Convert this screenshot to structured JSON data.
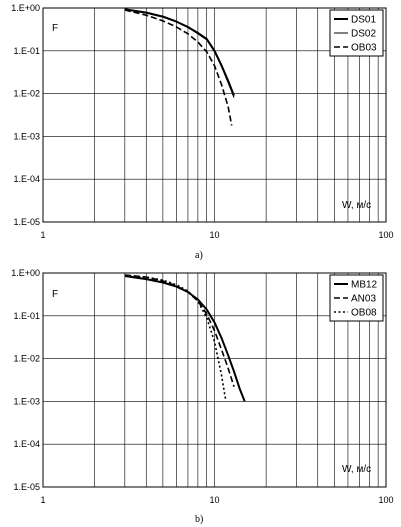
{
  "chart_data": [
    {
      "type": "line",
      "caption": "a)",
      "ylabel": "F",
      "xlabel": "W, м/с",
      "x_scale": "log",
      "y_scale": "log",
      "xlim": [
        1,
        100
      ],
      "ylim": [
        1e-05,
        1
      ],
      "x_ticks": [
        1,
        10,
        100
      ],
      "x_tick_labels": [
        "1",
        "10",
        "100"
      ],
      "y_ticks": [
        1,
        0.1,
        0.01,
        0.001,
        0.0001,
        1e-05
      ],
      "y_tick_labels": [
        "1.E+00",
        "1.E-01",
        "1.E-02",
        "1.E-03",
        "1.E-04",
        "1.E-05"
      ],
      "grid": true,
      "legend_position": "top-right",
      "series": [
        {
          "name": "DS01",
          "style": "thick-solid",
          "x": [
            3.0,
            4.0,
            5.0,
            6.0,
            7.0,
            8.0,
            9.0,
            10.0,
            11.0,
            12.0,
            13.0
          ],
          "y": [
            0.93,
            0.78,
            0.63,
            0.48,
            0.36,
            0.26,
            0.19,
            0.1,
            0.045,
            0.02,
            0.009
          ]
        },
        {
          "name": "DS02",
          "style": "thin-solid",
          "x": [
            3.0,
            4.0,
            5.0,
            6.0,
            7.0,
            8.0,
            9.0,
            10.0,
            11.0,
            12.0,
            13.0
          ],
          "y": [
            0.92,
            0.76,
            0.61,
            0.47,
            0.35,
            0.25,
            0.18,
            0.095,
            0.042,
            0.018,
            0.008
          ]
        },
        {
          "name": "OB03",
          "style": "dashed",
          "x": [
            3.0,
            4.0,
            5.0,
            6.0,
            7.0,
            8.0,
            9.0,
            10.0,
            11.0,
            12.0,
            12.6
          ],
          "y": [
            0.9,
            0.68,
            0.5,
            0.36,
            0.25,
            0.16,
            0.095,
            0.045,
            0.016,
            0.005,
            0.0018
          ]
        }
      ]
    },
    {
      "type": "line",
      "caption": "b)",
      "ylabel": "F",
      "xlabel": "W, м/с",
      "x_scale": "log",
      "y_scale": "log",
      "xlim": [
        1,
        100
      ],
      "ylim": [
        1e-05,
        1
      ],
      "x_ticks": [
        1,
        10,
        100
      ],
      "x_tick_labels": [
        "1",
        "10",
        "100"
      ],
      "y_ticks": [
        1,
        0.1,
        0.01,
        0.001,
        0.0001,
        1e-05
      ],
      "y_tick_labels": [
        "1.E+00",
        "1.E-01",
        "1.E-02",
        "1.E-03",
        "1.E-04",
        "1.E-05"
      ],
      "grid": true,
      "legend_position": "top-right",
      "series": [
        {
          "name": "MB12",
          "style": "thick-solid",
          "x": [
            3.0,
            4.0,
            5.0,
            6.0,
            7.0,
            8.0,
            9.0,
            10.0,
            11.0,
            12.0,
            13.0,
            14.0,
            15.0
          ],
          "y": [
            0.85,
            0.72,
            0.6,
            0.48,
            0.36,
            0.24,
            0.14,
            0.07,
            0.03,
            0.012,
            0.005,
            0.002,
            0.001
          ]
        },
        {
          "name": "AN03",
          "style": "dashed",
          "x": [
            3.0,
            4.0,
            5.0,
            6.0,
            7.0,
            8.0,
            9.0,
            10.0,
            11.0,
            12.0,
            13.0
          ],
          "y": [
            0.9,
            0.8,
            0.65,
            0.5,
            0.36,
            0.22,
            0.11,
            0.045,
            0.016,
            0.006,
            0.0022
          ]
        },
        {
          "name": "OB08",
          "style": "dotted",
          "x": [
            3.0,
            4.0,
            5.0,
            6.0,
            7.0,
            8.0,
            9.0,
            10.0,
            11.0,
            11.6
          ],
          "y": [
            0.88,
            0.8,
            0.68,
            0.53,
            0.38,
            0.22,
            0.09,
            0.025,
            0.004,
            0.0011
          ]
        }
      ]
    }
  ]
}
